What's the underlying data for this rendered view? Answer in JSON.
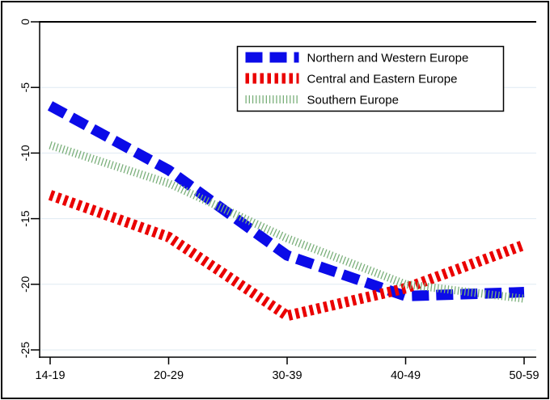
{
  "chart_data": {
    "type": "line",
    "title": "",
    "xlabel": "",
    "ylabel": "",
    "categories": [
      "14-19",
      "20-29",
      "30-39",
      "40-49",
      "50-59"
    ],
    "series": [
      {
        "name": "Northern and Western Europe",
        "color": "#0b0be8",
        "pattern": "heavy-dash",
        "values": [
          -6.4,
          -11.3,
          -17.8,
          -20.9,
          -20.6
        ]
      },
      {
        "name": "Central and Eastern Europe",
        "color": "#ea0000",
        "pattern": "dense-bars",
        "values": [
          -13.2,
          -16.4,
          -22.4,
          -20.3,
          -17.0
        ]
      },
      {
        "name": "Southern Europe",
        "color": "#7aaf7a",
        "pattern": "thin-hatch",
        "values": [
          -9.4,
          -12.3,
          -16.5,
          -20.0,
          -21.1
        ]
      }
    ],
    "yticks": [
      0,
      -5,
      -10,
      -15,
      -20,
      -25
    ],
    "ylim": [
      -25.6,
      0.1
    ],
    "grid": true,
    "gridline_color": "#dfeaf2",
    "zero_line_color": "#000000",
    "axis_color": "#000000",
    "legend_position": "top-right-inside",
    "legend_border_color": "#000000",
    "legend_background": "#ffffff",
    "figure_border_color": "#000000",
    "background_color": "#ffffff"
  }
}
